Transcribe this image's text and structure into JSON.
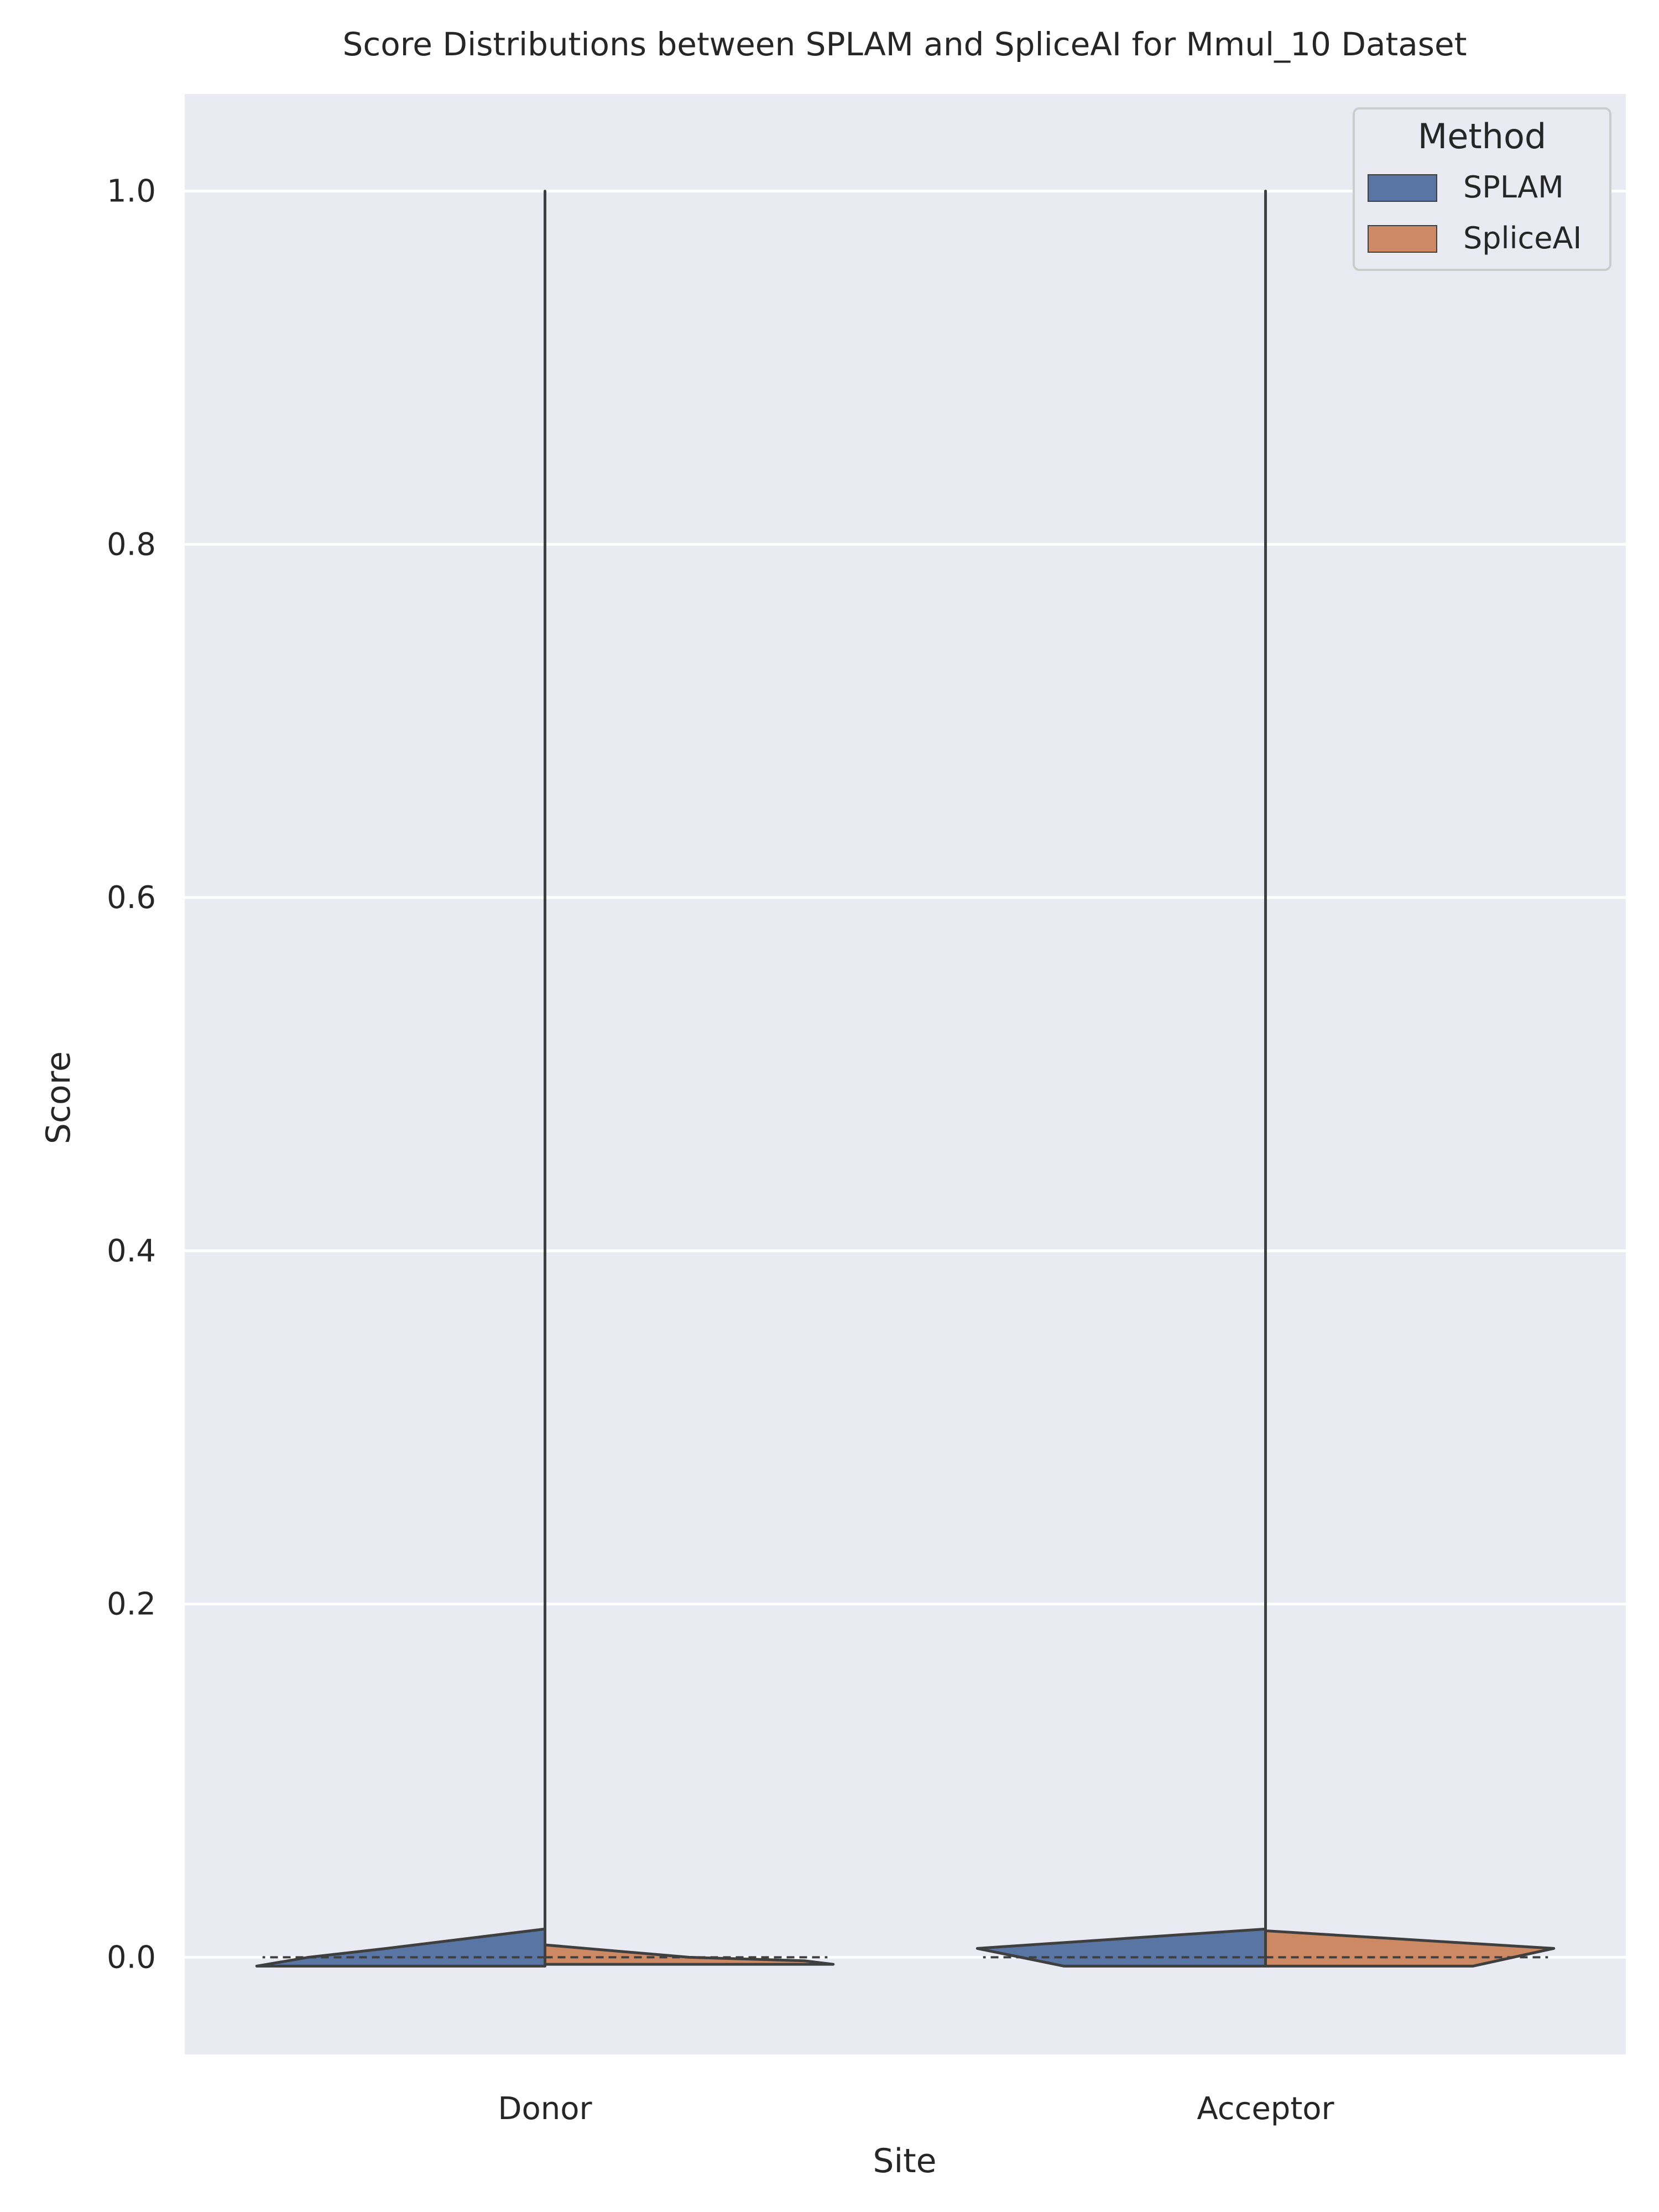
{
  "chart_data": {
    "type": "violin",
    "title": "Score Distributions between SPLAM and SpliceAI for Mmul_10 Dataset",
    "xlabel": "Site",
    "ylabel": "Score",
    "categories": [
      "Donor",
      "Acceptor"
    ],
    "ylim": [
      -0.055,
      1.055
    ],
    "yticks": [
      0.0,
      0.2,
      0.4,
      0.6,
      0.8,
      1.0
    ],
    "ytick_labels": [
      "0.0",
      "0.2",
      "0.4",
      "0.6",
      "0.8",
      "1.0"
    ],
    "grid": true,
    "legend": {
      "title": "Method",
      "placement": "top-right",
      "entries": [
        "SPLAM",
        "SpliceAI"
      ]
    },
    "split": true,
    "inner": "quartile",
    "series": [
      {
        "name": "SPLAM",
        "color": "#5975a4",
        "violins": [
          {
            "category": "Donor",
            "min": -0.005,
            "max": 1.0,
            "median": 0.0,
            "profile": [
              [
                -0.005,
                1.0
              ],
              [
                0.0,
                0.82
              ],
              [
                0.005,
                0.55
              ],
              [
                0.016,
                0.0
              ],
              [
                0.035,
                0.0
              ],
              [
                1.0,
                0.0
              ]
            ]
          },
          {
            "category": "Acceptor",
            "min": -0.005,
            "max": 1.0,
            "median": 0.0,
            "profile": [
              [
                -0.005,
                0.7
              ],
              [
                0.0,
                0.85
              ],
              [
                0.005,
                1.0
              ],
              [
                0.016,
                0.0
              ],
              [
                0.035,
                0.0
              ],
              [
                1.0,
                0.0
              ]
            ]
          }
        ]
      },
      {
        "name": "SpliceAI",
        "color": "#cc8963",
        "violins": [
          {
            "category": "Donor",
            "min": -0.004,
            "max": 0.007,
            "median": 0.0,
            "profile": [
              [
                -0.004,
                1.0
              ],
              [
                -0.002,
                0.9
              ],
              [
                0.0,
                0.5
              ],
              [
                0.007,
                0.0
              ]
            ]
          },
          {
            "category": "Acceptor",
            "min": -0.005,
            "max": 1.0,
            "median": 0.0,
            "profile": [
              [
                -0.005,
                0.72
              ],
              [
                0.005,
                1.0
              ],
              [
                0.015,
                0.0
              ],
              [
                0.035,
                0.0
              ],
              [
                1.0,
                0.0
              ]
            ]
          }
        ]
      }
    ]
  }
}
